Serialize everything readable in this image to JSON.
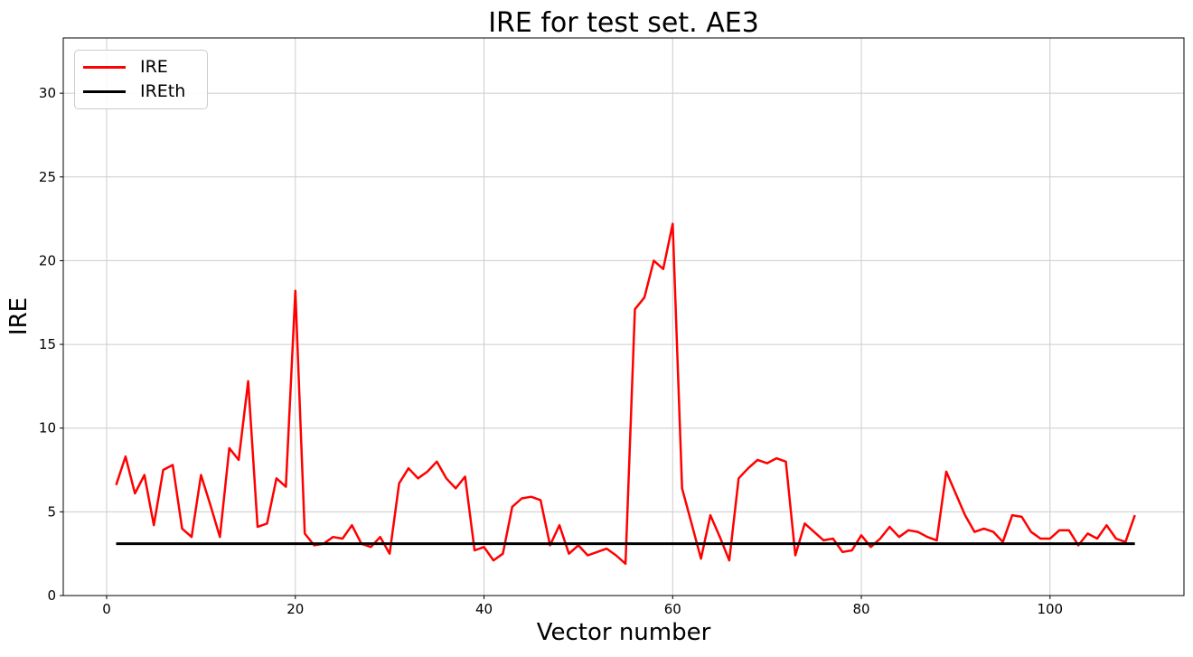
{
  "title": "IRE for test set. AE3",
  "chart_data": {
    "type": "line",
    "title": "IRE for test set. AE3",
    "xlabel": "Vector number",
    "ylabel": "IRE",
    "xlim": [
      -4.6,
      114.2
    ],
    "ylim": [
      0,
      33.3
    ],
    "xticks": [
      0,
      20,
      40,
      60,
      80,
      100
    ],
    "yticks": [
      0,
      5,
      10,
      15,
      20,
      25,
      30
    ],
    "grid": true,
    "grid_color": "#cccccc",
    "legend_position": "upper-left",
    "series": [
      {
        "name": "IRE",
        "color": "#ff0000",
        "width": 2.5,
        "x_start": 1,
        "x_step": 1,
        "y": [
          6.6,
          8.3,
          6.1,
          7.2,
          4.2,
          7.5,
          7.8,
          4.0,
          3.5,
          7.2,
          5.4,
          3.5,
          8.8,
          8.1,
          12.8,
          4.1,
          4.3,
          7.0,
          6.5,
          18.2,
          3.7,
          3.0,
          3.1,
          3.5,
          3.4,
          4.2,
          3.1,
          2.9,
          3.5,
          2.5,
          6.7,
          7.6,
          7.0,
          7.4,
          8.0,
          7.0,
          6.4,
          7.1,
          2.7,
          2.9,
          2.1,
          2.5,
          5.3,
          5.8,
          5.9,
          5.7,
          3.0,
          4.2,
          2.5,
          3.0,
          2.4,
          2.6,
          2.8,
          2.4,
          1.9,
          17.1,
          17.8,
          20.0,
          19.5,
          22.2,
          6.4,
          4.3,
          2.2,
          4.8,
          3.5,
          2.1,
          7.0,
          7.6,
          8.1,
          7.9,
          8.2,
          8.0,
          2.4,
          4.3,
          3.8,
          3.3,
          3.4,
          2.6,
          2.7,
          3.6,
          2.9,
          3.4,
          4.1,
          3.5,
          3.9,
          3.8,
          3.5,
          3.3,
          7.4,
          6.1,
          4.8,
          3.8,
          4.0,
          3.8,
          3.2,
          4.8,
          4.7,
          3.8,
          3.4,
          3.4,
          3.9,
          3.9,
          3.0,
          3.7,
          3.4,
          4.2,
          3.4,
          3.2,
          4.8
        ]
      },
      {
        "name": "IREth",
        "color": "#000000",
        "width": 3,
        "x": [
          1,
          109
        ],
        "y": [
          3.1,
          3.1
        ]
      }
    ]
  }
}
